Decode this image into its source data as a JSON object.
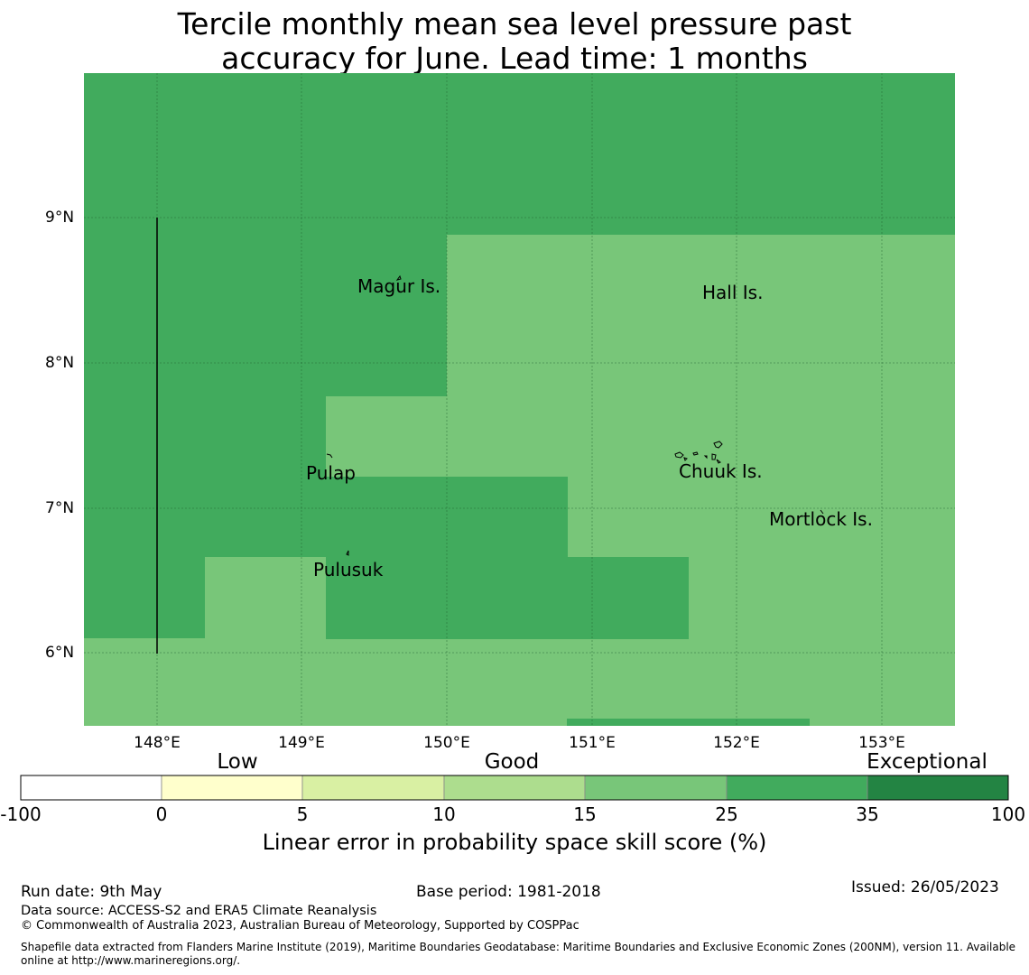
{
  "title": {
    "line1": "Tercile monthly mean sea level pressure past",
    "line2": "accuracy for June. Lead time: 1 months"
  },
  "map": {
    "lat_labels": [
      "9°N",
      "8°N",
      "7°N",
      "6°N"
    ],
    "lon_labels": [
      "148°E",
      "149°E",
      "150°E",
      "151°E",
      "152°E",
      "153°E"
    ],
    "places": [
      "Magur Is.",
      "Hall Is.",
      "Pulap",
      "Chuuk Is.",
      "Mortlock Is.",
      "Pulusuk"
    ],
    "colors": {
      "category_25_35": "#41ab5d",
      "category_15_25": "#78c679"
    }
  },
  "legend": {
    "categories": [
      "Low",
      "Good",
      "Exceptional"
    ],
    "ticks": [
      "-100",
      "0",
      "5",
      "10",
      "15",
      "25",
      "35",
      "100"
    ],
    "colors": [
      "#ffffff",
      "#ffffcc",
      "#d9f0a3",
      "#addd8e",
      "#78c679",
      "#41ab5d",
      "#238443"
    ],
    "label": "Linear error in probability space skill score (%)"
  },
  "footer": {
    "run_date": "Run date: 9th May",
    "base_period": "Base period: 1981-2018",
    "issued": "Issued: 26/05/2023",
    "data_source": "Data source: ACCESS-S2 and ERA5 Climate Reanalysis",
    "copyright": "© Commonwealth of Australia 2023, Australian Bureau of Meteorology, Supported by COSPPac",
    "shapefile": "Shapefile data extracted from Flanders Marine Institute (2019), Maritime Boundaries Geodatabase: Maritime Boundaries and Exclusive Economic Zones (200NM), version 11. Available online at http://www.marineregions.org/."
  }
}
